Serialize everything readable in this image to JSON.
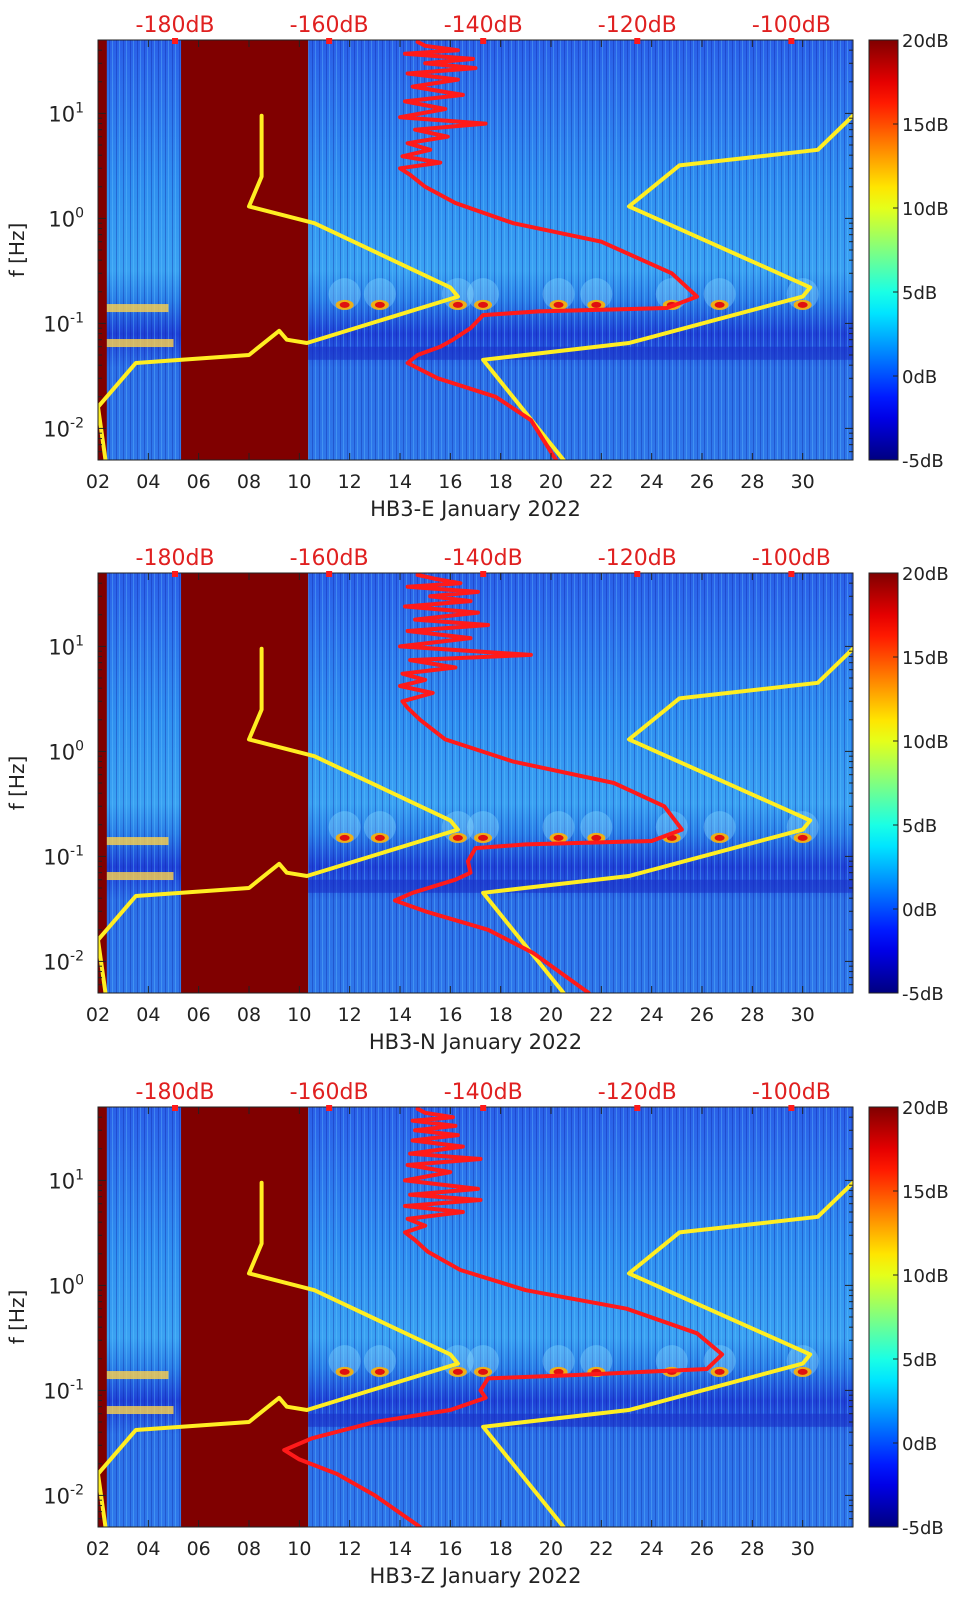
{
  "chart_data": [
    {
      "type": "heatmap",
      "station": "HB3-E",
      "xlabel": "HB3-E January 2022",
      "ylabel": "f [Hz]",
      "x_ticks": [
        "02",
        "04",
        "06",
        "08",
        "10",
        "12",
        "14",
        "16",
        "18",
        "20",
        "22",
        "24",
        "26",
        "28",
        "30"
      ],
      "y_ticks": [
        {
          "base": "10",
          "exp": "1",
          "value": 10
        },
        {
          "base": "10",
          "exp": "0",
          "value": 1
        },
        {
          "base": "10",
          "exp": "-1",
          "value": 0.1
        },
        {
          "base": "10",
          "exp": "-2",
          "value": 0.01
        }
      ],
      "xlim": [
        2,
        32
      ],
      "ylim": [
        0.005,
        50
      ],
      "yscale": "log",
      "top_axis_labels": [
        "-180dB",
        "-160dB",
        "-140dB",
        "-120dB",
        "-100dB"
      ],
      "top_axis_values": [
        -180,
        -160,
        -140,
        -120,
        -100
      ],
      "colorbar": {
        "labels": [
          "20dB",
          "15dB",
          "10dB",
          "5dB",
          "0dB",
          "-5dB"
        ],
        "values": [
          20,
          15,
          10,
          5,
          0,
          -5
        ],
        "colormap": "jet"
      },
      "data_gaps": [
        [
          2.0,
          2.35
        ],
        [
          5.3,
          10.35
        ]
      ],
      "psd_bands": [
        {
          "f": 0.14,
          "day_range": [
            2.3,
            4.8
          ]
        },
        {
          "f": 0.065,
          "day_range": [
            2.3,
            5.0
          ]
        }
      ],
      "storm_days": [
        11.8,
        13.2,
        16.3,
        17.3,
        20.3,
        21.8,
        24.8,
        26.7,
        30.0
      ],
      "series": [
        {
          "name_hidden": true,
          "color": "#ffee22",
          "points": [
            [
              8.5,
              9.5
            ],
            [
              8.5,
              2.5
            ],
            [
              8.0,
              1.3
            ],
            [
              10.6,
              0.9
            ],
            [
              16.0,
              0.22
            ],
            [
              16.3,
              0.18
            ],
            [
              10.3,
              0.065
            ],
            [
              9.5,
              0.07
            ],
            [
              9.2,
              0.085
            ],
            [
              8.0,
              0.05
            ],
            [
              3.5,
              0.042
            ],
            [
              2.0,
              0.016
            ],
            [
              2.3,
              0.005
            ]
          ]
        },
        {
          "name_hidden": true,
          "color": "#ffee22",
          "points": [
            [
              32,
              9.5
            ],
            [
              30.6,
              4.5
            ],
            [
              25.1,
              3.2
            ],
            [
              23.1,
              1.3
            ],
            [
              30.3,
              0.22
            ],
            [
              30.0,
              0.18
            ],
            [
              23.1,
              0.065
            ],
            [
              17.3,
              0.045
            ],
            [
              20.5,
              0.005
            ]
          ]
        },
        {
          "name_hidden": true,
          "color": "#ff1a1a",
          "points": [
            [
              14.7,
              48
            ],
            [
              15.0,
              44
            ],
            [
              16.3,
              40
            ],
            [
              14.2,
              37
            ],
            [
              16.9,
              33
            ],
            [
              15.0,
              30
            ],
            [
              17.0,
              27
            ],
            [
              14.3,
              24
            ],
            [
              16.3,
              21
            ],
            [
              14.5,
              18
            ],
            [
              16.5,
              15
            ],
            [
              14.2,
              13
            ],
            [
              15.8,
              11
            ],
            [
              14.0,
              9.2
            ],
            [
              17.4,
              8.0
            ],
            [
              14.6,
              7.0
            ],
            [
              15.9,
              6.0
            ],
            [
              14.3,
              5.2
            ],
            [
              15.2,
              4.5
            ],
            [
              14.1,
              3.9
            ],
            [
              15.6,
              3.4
            ],
            [
              14.0,
              3.0
            ],
            [
              14.4,
              2.6
            ],
            [
              15.0,
              2.0
            ],
            [
              16.2,
              1.4
            ],
            [
              18.5,
              0.9
            ],
            [
              22.0,
              0.6
            ],
            [
              24.8,
              0.3
            ],
            [
              25.8,
              0.18
            ],
            [
              24.6,
              0.14
            ],
            [
              19.5,
              0.13
            ],
            [
              17.3,
              0.12
            ],
            [
              16.8,
              0.09
            ],
            [
              16.1,
              0.07
            ],
            [
              15.6,
              0.06
            ],
            [
              14.7,
              0.05
            ],
            [
              14.3,
              0.042
            ],
            [
              15.5,
              0.03
            ],
            [
              17.8,
              0.02
            ],
            [
              19.2,
              0.012
            ],
            [
              20.2,
              0.005
            ]
          ]
        }
      ]
    },
    {
      "type": "heatmap",
      "station": "HB3-N",
      "xlabel": "HB3-N January 2022",
      "ylabel": "f [Hz]",
      "x_ticks": [
        "02",
        "04",
        "06",
        "08",
        "10",
        "12",
        "14",
        "16",
        "18",
        "20",
        "22",
        "24",
        "26",
        "28",
        "30"
      ],
      "y_ticks": [
        {
          "base": "10",
          "exp": "1",
          "value": 10
        },
        {
          "base": "10",
          "exp": "0",
          "value": 1
        },
        {
          "base": "10",
          "exp": "-1",
          "value": 0.1
        },
        {
          "base": "10",
          "exp": "-2",
          "value": 0.01
        }
      ],
      "xlim": [
        2,
        32
      ],
      "ylim": [
        0.005,
        50
      ],
      "yscale": "log",
      "top_axis_labels": [
        "-180dB",
        "-160dB",
        "-140dB",
        "-120dB",
        "-100dB"
      ],
      "top_axis_values": [
        -180,
        -160,
        -140,
        -120,
        -100
      ],
      "colorbar": {
        "labels": [
          "20dB",
          "15dB",
          "10dB",
          "5dB",
          "0dB",
          "-5dB"
        ],
        "values": [
          20,
          15,
          10,
          5,
          0,
          -5
        ],
        "colormap": "jet"
      },
      "data_gaps": [
        [
          2.0,
          2.35
        ],
        [
          5.3,
          10.35
        ]
      ],
      "psd_bands": [
        {
          "f": 0.14,
          "day_range": [
            2.3,
            4.8
          ]
        },
        {
          "f": 0.065,
          "day_range": [
            2.3,
            5.0
          ]
        }
      ],
      "storm_days": [
        11.8,
        13.2,
        16.3,
        17.3,
        20.3,
        21.8,
        24.8,
        26.7,
        30.0
      ],
      "series": [
        {
          "name_hidden": true,
          "color": "#ffee22",
          "points": [
            [
              8.5,
              9.5
            ],
            [
              8.5,
              2.5
            ],
            [
              8.0,
              1.3
            ],
            [
              10.6,
              0.9
            ],
            [
              16.0,
              0.22
            ],
            [
              16.3,
              0.18
            ],
            [
              10.3,
              0.065
            ],
            [
              9.5,
              0.07
            ],
            [
              9.2,
              0.085
            ],
            [
              8.0,
              0.05
            ],
            [
              3.5,
              0.042
            ],
            [
              2.0,
              0.016
            ],
            [
              2.3,
              0.005
            ]
          ]
        },
        {
          "name_hidden": true,
          "color": "#ffee22",
          "points": [
            [
              32,
              9.5
            ],
            [
              30.6,
              4.5
            ],
            [
              25.1,
              3.2
            ],
            [
              23.1,
              1.3
            ],
            [
              30.3,
              0.22
            ],
            [
              30.0,
              0.18
            ],
            [
              23.1,
              0.065
            ],
            [
              17.3,
              0.045
            ],
            [
              20.5,
              0.005
            ]
          ]
        },
        {
          "name_hidden": true,
          "color": "#ff1a1a",
          "points": [
            [
              14.7,
              48
            ],
            [
              15.4,
              44
            ],
            [
              16.4,
              40
            ],
            [
              14.3,
              37
            ],
            [
              17.1,
              33
            ],
            [
              15.2,
              30
            ],
            [
              16.8,
              27
            ],
            [
              14.2,
              24
            ],
            [
              17.1,
              21
            ],
            [
              14.6,
              18
            ],
            [
              17.5,
              16
            ],
            [
              14.3,
              14
            ],
            [
              16.8,
              12
            ],
            [
              14.0,
              10
            ],
            [
              19.2,
              8.3
            ],
            [
              14.4,
              7.4
            ],
            [
              16.2,
              6.3
            ],
            [
              14.1,
              5.5
            ],
            [
              15.0,
              4.8
            ],
            [
              14.0,
              4.2
            ],
            [
              15.3,
              3.6
            ],
            [
              14.1,
              3.0
            ],
            [
              14.3,
              2.6
            ],
            [
              14.8,
              2.0
            ],
            [
              15.8,
              1.3
            ],
            [
              18.5,
              0.8
            ],
            [
              22.5,
              0.5
            ],
            [
              24.5,
              0.3
            ],
            [
              25.2,
              0.18
            ],
            [
              24.0,
              0.14
            ],
            [
              19.0,
              0.13
            ],
            [
              17.0,
              0.12
            ],
            [
              16.7,
              0.09
            ],
            [
              16.8,
              0.07
            ],
            [
              16.2,
              0.06
            ],
            [
              14.5,
              0.045
            ],
            [
              13.8,
              0.038
            ],
            [
              15.0,
              0.03
            ],
            [
              17.5,
              0.02
            ],
            [
              19.3,
              0.012
            ],
            [
              21.5,
              0.005
            ]
          ]
        }
      ]
    },
    {
      "type": "heatmap",
      "station": "HB3-Z",
      "xlabel": "HB3-Z January 2022",
      "ylabel": "f [Hz]",
      "x_ticks": [
        "02",
        "04",
        "06",
        "08",
        "10",
        "12",
        "14",
        "16",
        "18",
        "20",
        "22",
        "24",
        "26",
        "28",
        "30"
      ],
      "y_ticks": [
        {
          "base": "10",
          "exp": "1",
          "value": 10
        },
        {
          "base": "10",
          "exp": "0",
          "value": 1
        },
        {
          "base": "10",
          "exp": "-1",
          "value": 0.1
        },
        {
          "base": "10",
          "exp": "-2",
          "value": 0.01
        }
      ],
      "xlim": [
        2,
        32
      ],
      "ylim": [
        0.005,
        50
      ],
      "yscale": "log",
      "top_axis_labels": [
        "-180dB",
        "-160dB",
        "-140dB",
        "-120dB",
        "-100dB"
      ],
      "top_axis_values": [
        -180,
        -160,
        -140,
        -120,
        -100
      ],
      "colorbar": {
        "labels": [
          "20dB",
          "15dB",
          "10dB",
          "5dB",
          "0dB",
          "-5dB"
        ],
        "values": [
          20,
          15,
          10,
          5,
          0,
          -5
        ],
        "colormap": "jet"
      },
      "data_gaps": [
        [
          2.0,
          2.35
        ],
        [
          5.3,
          10.35
        ]
      ],
      "psd_bands": [
        {
          "f": 0.14,
          "day_range": [
            2.3,
            4.8
          ]
        },
        {
          "f": 0.065,
          "day_range": [
            2.3,
            5.0
          ]
        }
      ],
      "storm_days": [
        11.8,
        13.2,
        16.3,
        17.3,
        20.3,
        21.8,
        24.8,
        26.7,
        30.0
      ],
      "series": [
        {
          "name_hidden": true,
          "color": "#ffee22",
          "points": [
            [
              8.5,
              9.5
            ],
            [
              8.5,
              2.5
            ],
            [
              8.0,
              1.3
            ],
            [
              10.6,
              0.9
            ],
            [
              16.0,
              0.22
            ],
            [
              16.3,
              0.18
            ],
            [
              10.3,
              0.065
            ],
            [
              9.5,
              0.07
            ],
            [
              9.2,
              0.085
            ],
            [
              8.0,
              0.05
            ],
            [
              3.5,
              0.042
            ],
            [
              2.0,
              0.016
            ],
            [
              2.3,
              0.005
            ]
          ]
        },
        {
          "name_hidden": true,
          "color": "#ffee22",
          "points": [
            [
              32,
              9.5
            ],
            [
              30.6,
              4.5
            ],
            [
              25.1,
              3.2
            ],
            [
              23.1,
              1.3
            ],
            [
              30.3,
              0.22
            ],
            [
              30.0,
              0.18
            ],
            [
              23.1,
              0.065
            ],
            [
              17.3,
              0.045
            ],
            [
              20.5,
              0.005
            ]
          ]
        },
        {
          "name_hidden": true,
          "color": "#ff1a1a",
          "points": [
            [
              14.7,
              48
            ],
            [
              15.0,
              44
            ],
            [
              16.1,
              40
            ],
            [
              14.5,
              37
            ],
            [
              16.2,
              33
            ],
            [
              14.6,
              30
            ],
            [
              16.3,
              27
            ],
            [
              14.5,
              24
            ],
            [
              16.5,
              21
            ],
            [
              14.4,
              18
            ],
            [
              17.2,
              16
            ],
            [
              14.3,
              14
            ],
            [
              16.0,
              12
            ],
            [
              14.2,
              10
            ],
            [
              17.1,
              8.3
            ],
            [
              14.4,
              7.3
            ],
            [
              17.2,
              6.5
            ],
            [
              14.2,
              5.7
            ],
            [
              16.5,
              5.0
            ],
            [
              14.3,
              4.3
            ],
            [
              15.0,
              3.7
            ],
            [
              14.2,
              3.2
            ],
            [
              14.6,
              2.7
            ],
            [
              15.1,
              2.1
            ],
            [
              16.4,
              1.4
            ],
            [
              19.0,
              0.9
            ],
            [
              23.0,
              0.6
            ],
            [
              25.8,
              0.35
            ],
            [
              26.8,
              0.22
            ],
            [
              26.2,
              0.16
            ],
            [
              21.0,
              0.14
            ],
            [
              17.5,
              0.13
            ],
            [
              17.2,
              0.1
            ],
            [
              17.4,
              0.085
            ],
            [
              16.0,
              0.065
            ],
            [
              13.0,
              0.05
            ],
            [
              10.5,
              0.035
            ],
            [
              9.4,
              0.027
            ],
            [
              10.0,
              0.022
            ],
            [
              11.5,
              0.016
            ],
            [
              13.0,
              0.01
            ],
            [
              14.8,
              0.005
            ]
          ]
        }
      ]
    }
  ]
}
